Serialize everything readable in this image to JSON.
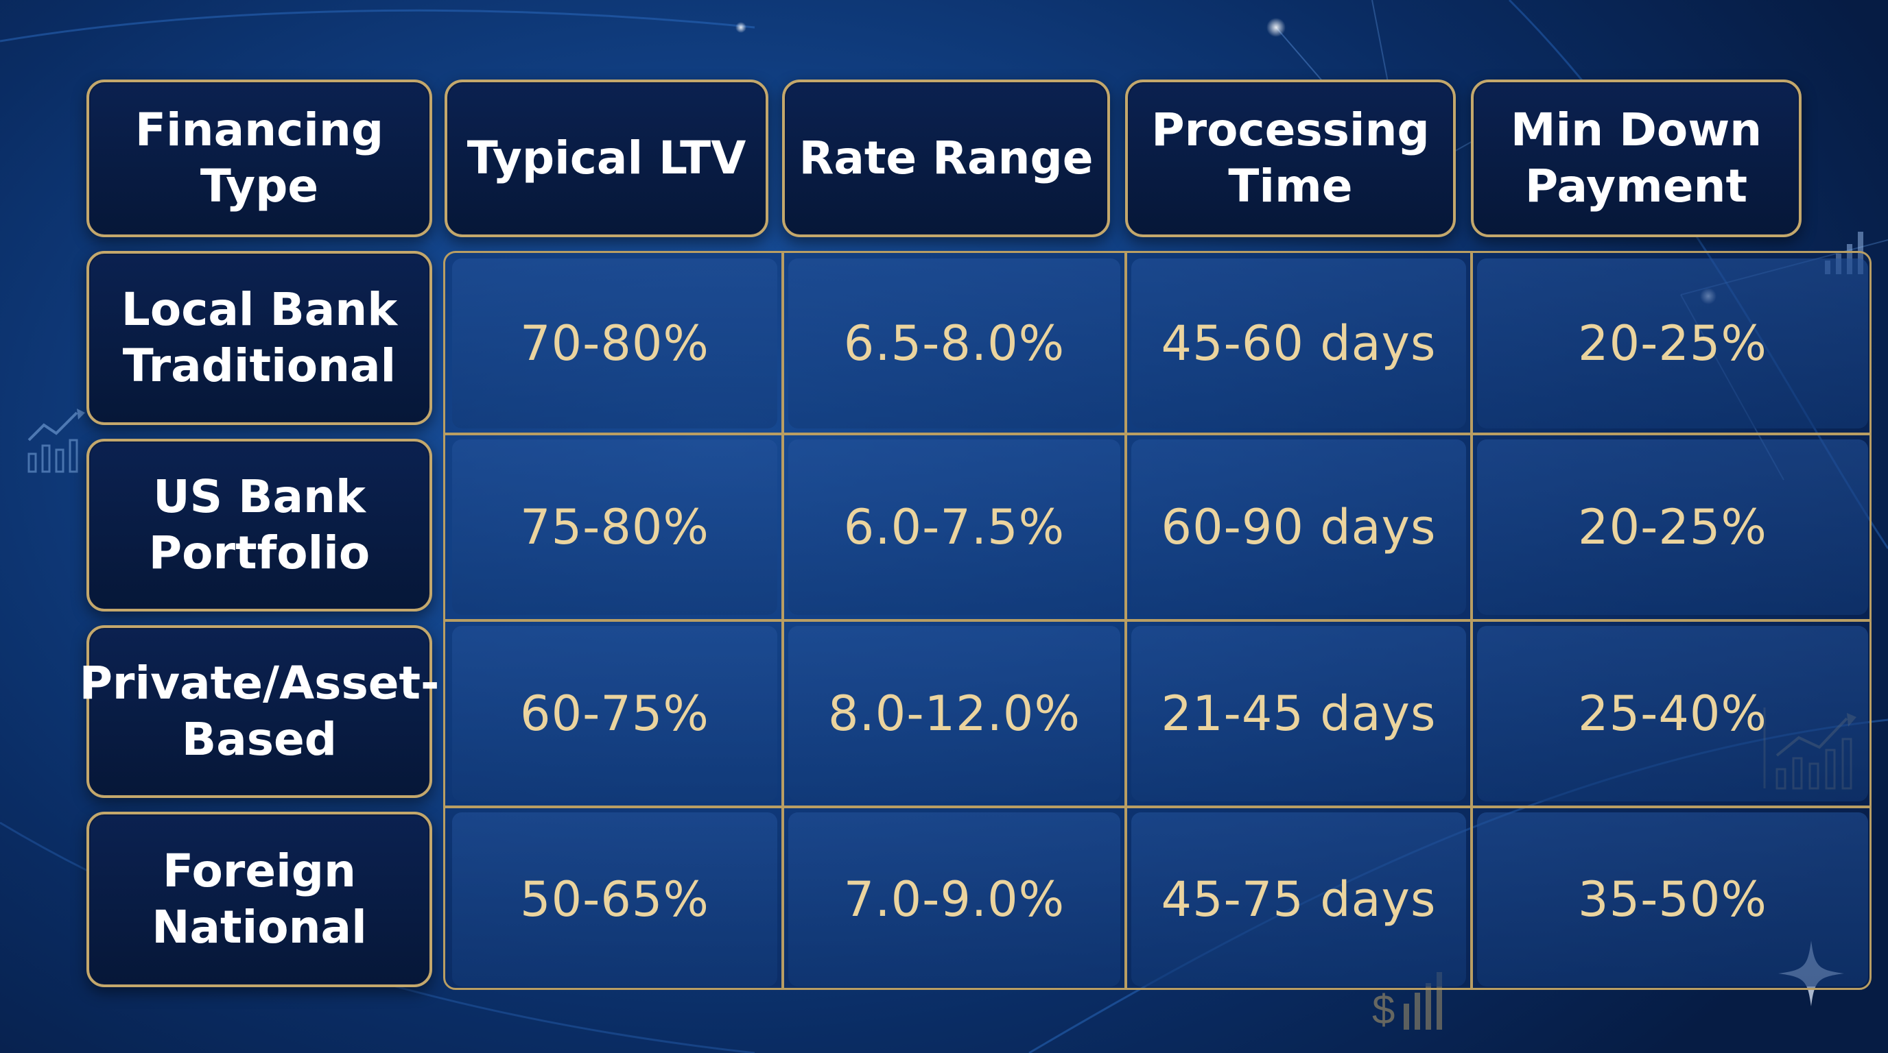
{
  "chart_data": {
    "type": "table",
    "columns": [
      "Financing\nType",
      "Typical LTV",
      "Rate Range",
      "Processing\nTime",
      "Min Down\nPayment"
    ],
    "rows": [
      {
        "label": "Local Bank\nTraditional",
        "values": [
          "70-80%",
          "6.5-8.0%",
          "45-60 days",
          "20-25%"
        ]
      },
      {
        "label": "US Bank\nPortfolio",
        "values": [
          "75-80%",
          "6.0-7.5%",
          "60-90 days",
          "20-25%"
        ]
      },
      {
        "label": "Private/Asset-\nBased",
        "values": [
          "60-75%",
          "8.0-12.0%",
          "21-45 days",
          "25-40%"
        ]
      },
      {
        "label": "Foreign\nNational",
        "values": [
          "50-65%",
          "7.0-9.0%",
          "45-75 days",
          "35-50%"
        ]
      }
    ]
  },
  "decorations": {
    "dollar_symbol": "$"
  },
  "colors": {
    "header_text": "#ffffff",
    "value_text": "#ebd49e",
    "border_gold": "#c4a86c",
    "header_fill": "#0b2150",
    "background_blue": "#114084"
  }
}
